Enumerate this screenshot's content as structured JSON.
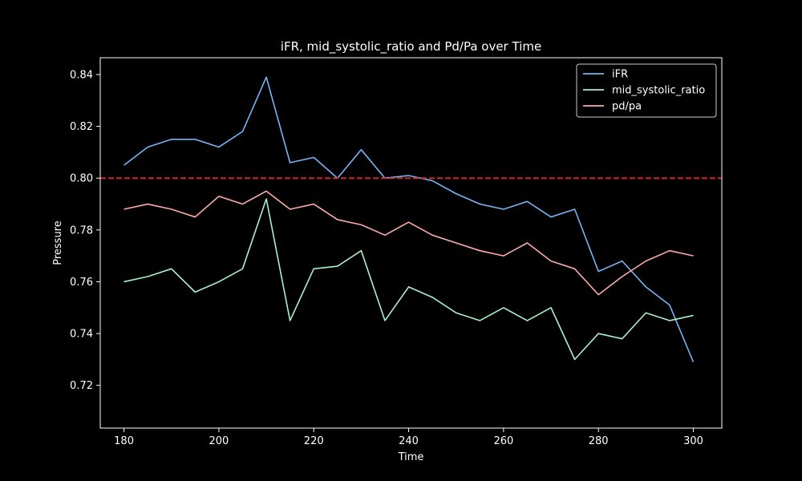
{
  "chart_data": {
    "type": "line",
    "title": "iFR, mid_systolic_ratio and Pd/Pa over Time",
    "xlabel": "Time",
    "ylabel": "Pressure",
    "xlim": [
      175,
      306
    ],
    "ylim": [
      0.7035,
      0.8465
    ],
    "x_ticks": [
      180,
      200,
      220,
      240,
      260,
      280,
      300
    ],
    "y_ticks": [
      0.72,
      0.74,
      0.76,
      0.78,
      0.8,
      0.82,
      0.84
    ],
    "x_tick_labels": [
      "180",
      "200",
      "220",
      "240",
      "260",
      "280",
      "300"
    ],
    "y_tick_labels": [
      "0.72",
      "0.74",
      "0.76",
      "0.78",
      "0.80",
      "0.82",
      "0.84"
    ],
    "grid": false,
    "legend_position": "top-right",
    "threshold": {
      "value": 0.8,
      "style": "dashed",
      "color": "#d62728"
    },
    "x": [
      180,
      185,
      190,
      195,
      200,
      205,
      210,
      215,
      220,
      225,
      230,
      235,
      240,
      245,
      250,
      255,
      260,
      265,
      270,
      275,
      280,
      285,
      290,
      295,
      300
    ],
    "series": [
      {
        "name": "iFR",
        "color": "#75b4f5",
        "values": [
          0.805,
          0.812,
          0.815,
          0.815,
          0.812,
          0.818,
          0.839,
          0.806,
          0.808,
          0.8,
          0.811,
          0.8,
          0.801,
          0.799,
          0.794,
          0.79,
          0.788,
          0.791,
          0.785,
          0.788,
          0.764,
          0.768,
          0.758,
          0.751,
          0.729
        ]
      },
      {
        "name": "mid_systolic_ratio",
        "color": "#a8f0cc",
        "values": [
          0.76,
          0.762,
          0.765,
          0.756,
          0.76,
          0.765,
          0.792,
          0.745,
          0.765,
          0.766,
          0.772,
          0.745,
          0.758,
          0.754,
          0.748,
          0.745,
          0.75,
          0.745,
          0.75,
          0.73,
          0.74,
          0.738,
          0.748,
          0.745,
          0.747
        ]
      },
      {
        "name": "pd/pa",
        "color": "#ffaaaa",
        "values": [
          0.788,
          0.79,
          0.788,
          0.785,
          0.793,
          0.79,
          0.795,
          0.788,
          0.79,
          0.784,
          0.782,
          0.778,
          0.783,
          0.778,
          0.775,
          0.772,
          0.77,
          0.775,
          0.768,
          0.765,
          0.755,
          0.762,
          0.768,
          0.772,
          0.77
        ]
      }
    ]
  }
}
